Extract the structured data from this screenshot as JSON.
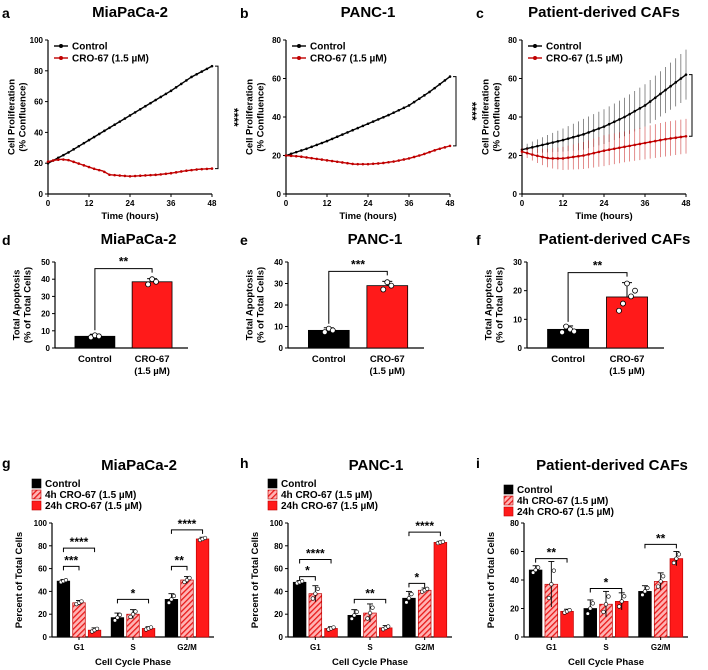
{
  "panels": {
    "a": "a",
    "b": "b",
    "c": "c",
    "d": "d",
    "e": "e",
    "f": "f",
    "g": "g",
    "h": "h",
    "i": "i"
  },
  "colors": {
    "control": "#000000",
    "treated": "#c00000",
    "bar_treated": "#ff1a1a",
    "bar_hatch": "#ff5a5a"
  },
  "chart_data": [
    {
      "panel": "a",
      "type": "line",
      "title": "MiaPaCa-2",
      "xlabel": "Time (hours)",
      "ylabel": [
        "Cell Proliferation",
        "(% Confluence)"
      ],
      "xlim": [
        0,
        48
      ],
      "ylim": [
        0,
        100
      ],
      "xticks": [
        "0",
        "12",
        "24",
        "36",
        "48"
      ],
      "yticks": [
        "0",
        "20",
        "40",
        "60",
        "80",
        "100"
      ],
      "legend": [
        "Control",
        "CRO-67 (1.5 µM)"
      ],
      "legend_position": "top-left",
      "significance": "****",
      "series": [
        {
          "name": "Control",
          "x": [
            0,
            6,
            12,
            18,
            24,
            30,
            36,
            42,
            48
          ],
          "y": [
            20,
            27,
            35,
            43,
            51,
            59,
            67,
            76,
            83
          ],
          "err": 1
        },
        {
          "name": "CRO-67 (1.5 µM)",
          "x": [
            0,
            2,
            4,
            6,
            8,
            10,
            12,
            14,
            16,
            18,
            21,
            24,
            28,
            32,
            36,
            40,
            44,
            48
          ],
          "y": [
            21,
            22,
            22.5,
            22,
            20.5,
            19,
            17.5,
            16,
            15,
            12.5,
            12,
            11.5,
            12,
            12.5,
            13.5,
            15,
            16,
            16.5
          ],
          "err": 0.5
        }
      ]
    },
    {
      "panel": "b",
      "type": "line",
      "title": "PANC-1",
      "xlabel": "Time (hours)",
      "ylabel": [
        "Cell Proliferation",
        "(% Confluence)"
      ],
      "xlim": [
        0,
        48
      ],
      "ylim": [
        0,
        80
      ],
      "xticks": [
        "0",
        "12",
        "24",
        "36",
        "48"
      ],
      "yticks": [
        "0",
        "20",
        "40",
        "60",
        "80"
      ],
      "legend": [
        "Control",
        "CRO-67 (1.5 µM)"
      ],
      "legend_position": "top-left",
      "significance": "****",
      "series": [
        {
          "name": "Control",
          "x": [
            0,
            6,
            12,
            18,
            24,
            30,
            36,
            42,
            48
          ],
          "y": [
            20,
            23.5,
            27.5,
            32,
            36.5,
            41,
            46,
            53,
            61
          ],
          "err": 1
        },
        {
          "name": "CRO-67 (1.5 µM)",
          "x": [
            0,
            4,
            8,
            12,
            16,
            20,
            24,
            28,
            32,
            36,
            40,
            44,
            48
          ],
          "y": [
            20,
            19.5,
            18.5,
            17.5,
            16.5,
            15.5,
            15.5,
            16,
            17,
            18.5,
            20.5,
            23,
            25
          ],
          "err": 0.5
        }
      ]
    },
    {
      "panel": "c",
      "type": "line",
      "title": "Patient-derived CAFs",
      "xlabel": "Time (hours)",
      "ylabel": [
        "Cell Proliferation",
        "(% Confluence)"
      ],
      "xlim": [
        0,
        48
      ],
      "ylim": [
        0,
        80
      ],
      "xticks": [
        "0",
        "12",
        "24",
        "36",
        "48"
      ],
      "yticks": [
        "0",
        "20",
        "40",
        "60",
        "80"
      ],
      "legend": [
        "Control",
        "CRO-67 (1.5 µM)"
      ],
      "legend_position": "top-left",
      "significance": "**",
      "series": [
        {
          "name": "Control",
          "x": [
            0,
            6,
            12,
            18,
            24,
            30,
            36,
            42,
            48
          ],
          "y": [
            23,
            25.5,
            28,
            31,
            35,
            40,
            46,
            54,
            62
          ],
          "err": [
            2,
            4,
            6,
            8,
            9,
            10,
            11,
            12,
            13
          ]
        },
        {
          "name": "CRO-67 (1.5 µM)",
          "x": [
            0,
            4,
            8,
            12,
            18,
            24,
            30,
            36,
            42,
            48
          ],
          "y": [
            22,
            20,
            18.5,
            18.5,
            20,
            22.5,
            24.5,
            26.5,
            28.5,
            30
          ],
          "err": [
            2,
            3.5,
            5,
            6,
            7,
            8,
            8,
            8.5,
            9,
            9
          ]
        }
      ]
    },
    {
      "panel": "d",
      "type": "bar",
      "title": "MiaPaCa-2",
      "categories": [
        "Control",
        "CRO-67 (1.5 µM)"
      ],
      "category_labels": [
        [
          "Control"
        ],
        [
          "CRO-67",
          "(1.5 µM)"
        ]
      ],
      "values": [
        6.8,
        38.5
      ],
      "errors": [
        1.2,
        1.8
      ],
      "points": [
        [
          6.2,
          7.4,
          6.8
        ],
        [
          37,
          40,
          38.5
        ]
      ],
      "ylabel": [
        "Total Apoptosis",
        "(% of Total Cells)"
      ],
      "ylim": [
        0,
        50
      ],
      "yticks": [
        "0",
        "10",
        "20",
        "30",
        "40",
        "50"
      ],
      "significance": "**"
    },
    {
      "panel": "e",
      "type": "bar",
      "title": "PANC-1",
      "categories": [
        "Control",
        "CRO-67 (1.5 µM)"
      ],
      "category_labels": [
        [
          "Control"
        ],
        [
          "CRO-67",
          "(1.5 µM)"
        ]
      ],
      "values": [
        8.2,
        29
      ],
      "errors": [
        1.2,
        2
      ],
      "points": [
        [
          7.4,
          9,
          8.2
        ],
        [
          27.2,
          30.6,
          29
        ]
      ],
      "ylabel": [
        "Total Apoptosis",
        "(% of Total Cells)"
      ],
      "ylim": [
        0,
        40
      ],
      "yticks": [
        "0",
        "10",
        "20",
        "30",
        "40"
      ],
      "significance": "***"
    },
    {
      "panel": "f",
      "type": "bar",
      "title": "Patient-derived CAFs",
      "categories": [
        "Control",
        "CRO-67 (1.5 µM)"
      ],
      "category_labels": [
        [
          "Control"
        ],
        [
          "CRO-67",
          "(1.5 µM)"
        ]
      ],
      "values": [
        6.5,
        17.8
      ],
      "errors": [
        1.2,
        5
      ],
      "points": [
        [
          5.5,
          7.5,
          6.5,
          5.8
        ],
        [
          13,
          15.5,
          22.5,
          18,
          20
        ]
      ],
      "ylabel": [
        "Total Apoptosis",
        "(% of Total Cells)"
      ],
      "ylim": [
        0,
        30
      ],
      "yticks": [
        "0",
        "10",
        "20",
        "30"
      ],
      "significance": "**"
    },
    {
      "panel": "g",
      "type": "bar",
      "title": "MiaPaCa-2",
      "categories": [
        "G1",
        "S",
        "G2/M"
      ],
      "xlabel": "Cell Cycle Phase",
      "ylabel": "Percent of Total Cells",
      "ylim": [
        0,
        100
      ],
      "yticks": [
        "0",
        "20",
        "40",
        "60",
        "80",
        "100"
      ],
      "legend": [
        "Control",
        "4h CRO-67 (1.5 µM)",
        "24h CRO-67 (1.5 µM)"
      ],
      "legend_position": "top-left",
      "series": [
        {
          "name": "Control",
          "values": [
            49,
            17,
            33
          ],
          "errors": [
            1.5,
            4,
            5
          ]
        },
        {
          "name": "4h CRO-67 (1.5 µM)",
          "values": [
            30,
            20,
            50
          ],
          "errors": [
            2,
            4,
            3
          ]
        },
        {
          "name": "24h CRO-67 (1.5 µM)",
          "values": [
            6,
            7.5,
            86
          ],
          "errors": [
            2,
            1.5,
            1.5
          ]
        }
      ],
      "brackets": [
        {
          "group": 0,
          "from": 0,
          "to": 1,
          "y": 62,
          "label": "***"
        },
        {
          "group": 0,
          "from": 0,
          "to": 2,
          "y": 78,
          "label": "****"
        },
        {
          "group": 1,
          "from": 0,
          "to": 2,
          "y": 33,
          "label": "*"
        },
        {
          "group": 2,
          "from": 0,
          "to": 1,
          "y": 62,
          "label": "**"
        },
        {
          "group": 2,
          "from": 0,
          "to": 2,
          "y": 94,
          "label": "****"
        }
      ]
    },
    {
      "panel": "h",
      "type": "bar",
      "title": "PANC-1",
      "categories": [
        "G1",
        "S",
        "G2/M"
      ],
      "xlabel": "Cell Cycle Phase",
      "ylabel": "Percent of Total Cells",
      "ylim": [
        0,
        100
      ],
      "yticks": [
        "0",
        "20",
        "40",
        "60",
        "80",
        "100"
      ],
      "legend": [
        "Control",
        "4h CRO-67 (1.5 µM)",
        "24h CRO-67 (1.5 µM)"
      ],
      "legend_position": "top-left",
      "series": [
        {
          "name": "Control",
          "values": [
            48,
            19,
            34
          ],
          "errors": [
            1.5,
            5,
            6
          ]
        },
        {
          "name": "4h CRO-67 (1.5 µM)",
          "values": [
            38,
            21,
            41
          ],
          "errors": [
            7,
            8,
            2
          ]
        },
        {
          "name": "24h CRO-67 (1.5 µM)",
          "values": [
            7.5,
            8,
            83
          ],
          "errors": [
            1.5,
            2,
            1
          ]
        }
      ],
      "brackets": [
        {
          "group": 0,
          "from": 0,
          "to": 1,
          "y": 53,
          "label": "*"
        },
        {
          "group": 0,
          "from": 0,
          "to": 2,
          "y": 68,
          "label": "****"
        },
        {
          "group": 1,
          "from": 0,
          "to": 2,
          "y": 33,
          "label": "**"
        },
        {
          "group": 2,
          "from": 0,
          "to": 1,
          "y": 47,
          "label": "*"
        },
        {
          "group": 2,
          "from": 0,
          "to": 2,
          "y": 92,
          "label": "****"
        }
      ]
    },
    {
      "panel": "i",
      "type": "bar",
      "title": "Patient-derived CAFs",
      "categories": [
        "G1",
        "S",
        "G2/M"
      ],
      "xlabel": "Cell Cycle Phase",
      "ylabel": "Percent of Total Cells",
      "ylim": [
        0,
        80
      ],
      "yticks": [
        "0",
        "20",
        "40",
        "60",
        "80"
      ],
      "legend": [
        "Control",
        "4h CRO-67 (1.5 µM)",
        "24h CRO-67 (1.5 µM)"
      ],
      "legend_position": "top-left",
      "series": [
        {
          "name": "Control",
          "values": [
            47,
            20,
            32
          ],
          "errors": [
            3,
            6,
            4
          ]
        },
        {
          "name": "4h CRO-67 (1.5 µM)",
          "values": [
            37,
            23,
            39
          ],
          "errors": [
            16,
            9,
            6
          ]
        },
        {
          "name": "24h CRO-67 (1.5 µM)",
          "values": [
            18,
            25,
            55
          ],
          "errors": [
            1.5,
            6,
            5
          ]
        }
      ],
      "brackets": [
        {
          "group": 0,
          "from": 0,
          "to": 2,
          "y": 55,
          "label": "**"
        },
        {
          "group": 1,
          "from": 0,
          "to": 2,
          "y": 34,
          "label": "*"
        },
        {
          "group": 2,
          "from": 0,
          "to": 2,
          "y": 65,
          "label": "**"
        }
      ]
    }
  ]
}
